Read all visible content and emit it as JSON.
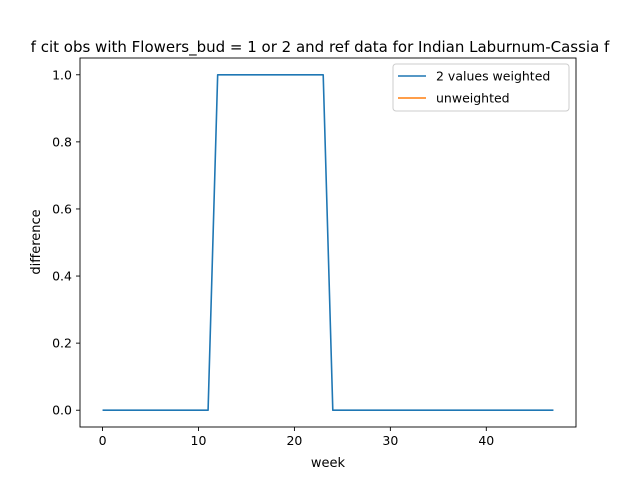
{
  "chart_data": {
    "type": "line",
    "title": "f cit obs with Flowers_bud = 1 or 2 and ref data for Indian Laburnum-Cassia f",
    "xlabel": "week",
    "ylabel": "difference",
    "xlim": [
      -2.35,
      49.35
    ],
    "ylim": [
      -0.05,
      1.05
    ],
    "xticks": [
      0,
      10,
      20,
      30,
      40
    ],
    "yticks": [
      0.0,
      0.2,
      0.4,
      0.6,
      0.8,
      1.0
    ],
    "xtick_labels": [
      "0",
      "10",
      "20",
      "30",
      "40"
    ],
    "ytick_labels": [
      "0.0",
      "0.2",
      "0.4",
      "0.6",
      "0.8",
      "1.0"
    ],
    "legend_position": "top-right",
    "series": [
      {
        "name": "2 values weighted",
        "color": "#1f77b4",
        "x": [
          0,
          1,
          2,
          3,
          4,
          5,
          6,
          7,
          8,
          9,
          10,
          11,
          12,
          13,
          14,
          15,
          16,
          17,
          18,
          19,
          20,
          21,
          22,
          23,
          24,
          25,
          26,
          27,
          28,
          29,
          30,
          31,
          32,
          33,
          34,
          35,
          36,
          37,
          38,
          39,
          40,
          41,
          42,
          43,
          44,
          45,
          46,
          47
        ],
        "y": [
          0,
          0,
          0,
          0,
          0,
          0,
          0,
          0,
          0,
          0,
          0,
          0,
          1,
          1,
          1,
          1,
          1,
          1,
          1,
          1,
          1,
          1,
          1,
          1,
          0,
          0,
          0,
          0,
          0,
          0,
          0,
          0,
          0,
          0,
          0,
          0,
          0,
          0,
          0,
          0,
          0,
          0,
          0,
          0,
          0,
          0,
          0,
          0
        ]
      },
      {
        "name": "unweighted",
        "color": "#ff7f0e",
        "x": [],
        "y": []
      }
    ]
  }
}
